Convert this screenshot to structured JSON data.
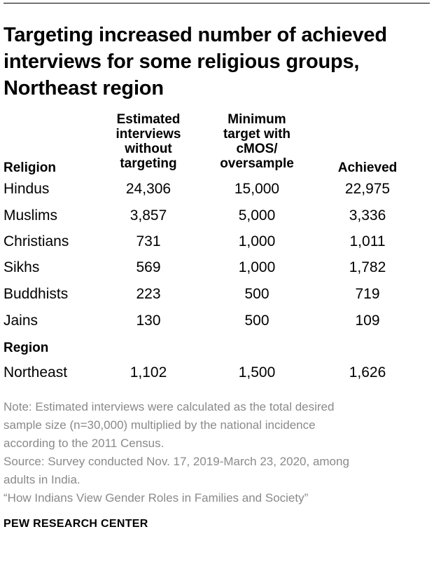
{
  "title": "Targeting increased number of achieved interviews for some religious groups, Northeast region",
  "table": {
    "headers": {
      "religion": "Religion",
      "estimated": [
        "Estimated",
        "interviews",
        "without",
        "targeting"
      ],
      "minimum": [
        "Minimum",
        "target with",
        "cMOS/",
        "oversample"
      ],
      "achieved": "Achieved"
    },
    "religion_rows": [
      {
        "label": "Hindus",
        "estimated": "24,306",
        "minimum": "15,000",
        "achieved": "22,975"
      },
      {
        "label": "Muslims",
        "estimated": "3,857",
        "minimum": "5,000",
        "achieved": "3,336"
      },
      {
        "label": "Christians",
        "estimated": "731",
        "minimum": "1,000",
        "achieved": "1,011"
      },
      {
        "label": "Sikhs",
        "estimated": "569",
        "minimum": "1,000",
        "achieved": "1,782"
      },
      {
        "label": "Buddhists",
        "estimated": "223",
        "minimum": "500",
        "achieved": "719"
      },
      {
        "label": "Jains",
        "estimated": "130",
        "minimum": "500",
        "achieved": "109"
      }
    ],
    "region_header": "Region",
    "region_rows": [
      {
        "label": "Northeast",
        "estimated": "1,102",
        "minimum": "1,500",
        "achieved": "1,626"
      }
    ]
  },
  "notes": {
    "note_lines": [
      "Note: Estimated interviews were calculated as the total desired",
      "sample size (n=30,000) multiplied by the national incidence",
      "according to the 2011 Census."
    ],
    "source_lines": [
      "Source: Survey conducted Nov. 17, 2019-March 23, 2020, among",
      "adults in India."
    ],
    "report": "“How Indians View Gender Roles in Families and Society”"
  },
  "footer": {
    "logo_text": "PEW RESEARCH CENTER"
  }
}
